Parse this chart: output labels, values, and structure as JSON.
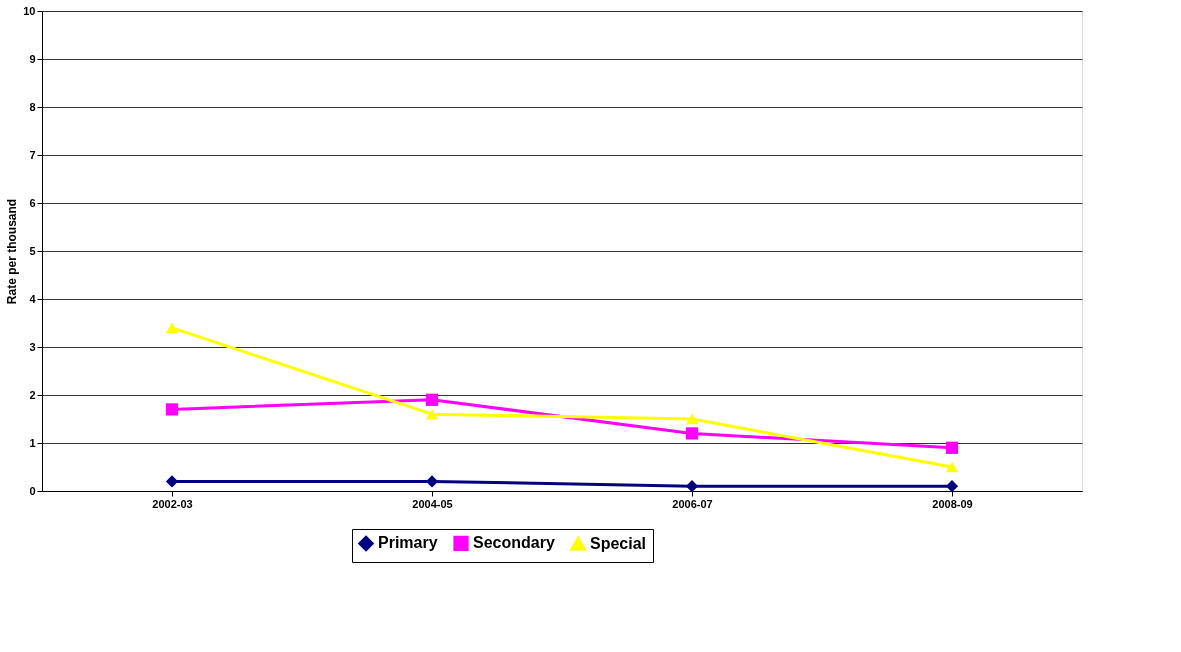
{
  "chart_data": {
    "type": "line",
    "ylabel": "Rate per thousand",
    "categories": [
      "2002-03",
      "2004-05",
      "2006-07",
      "2008-09"
    ],
    "series": [
      {
        "name": "Primary",
        "color": "#000080",
        "marker": "diamond",
        "values": [
          0.2,
          0.2,
          0.1,
          0.1
        ]
      },
      {
        "name": "Secondary",
        "color": "#ff00ff",
        "marker": "square",
        "values": [
          1.7,
          1.9,
          1.2,
          0.9
        ]
      },
      {
        "name": "Special",
        "color": "#ffff00",
        "marker": "triangle",
        "values": [
          3.4,
          1.6,
          1.5,
          0.5
        ]
      }
    ],
    "ylim": [
      0,
      10
    ],
    "yticks": [
      0,
      1,
      2,
      3,
      4,
      5,
      6,
      7,
      8,
      9,
      10
    ],
    "grid": "y",
    "legend": "bottom",
    "line_style": "solid"
  }
}
